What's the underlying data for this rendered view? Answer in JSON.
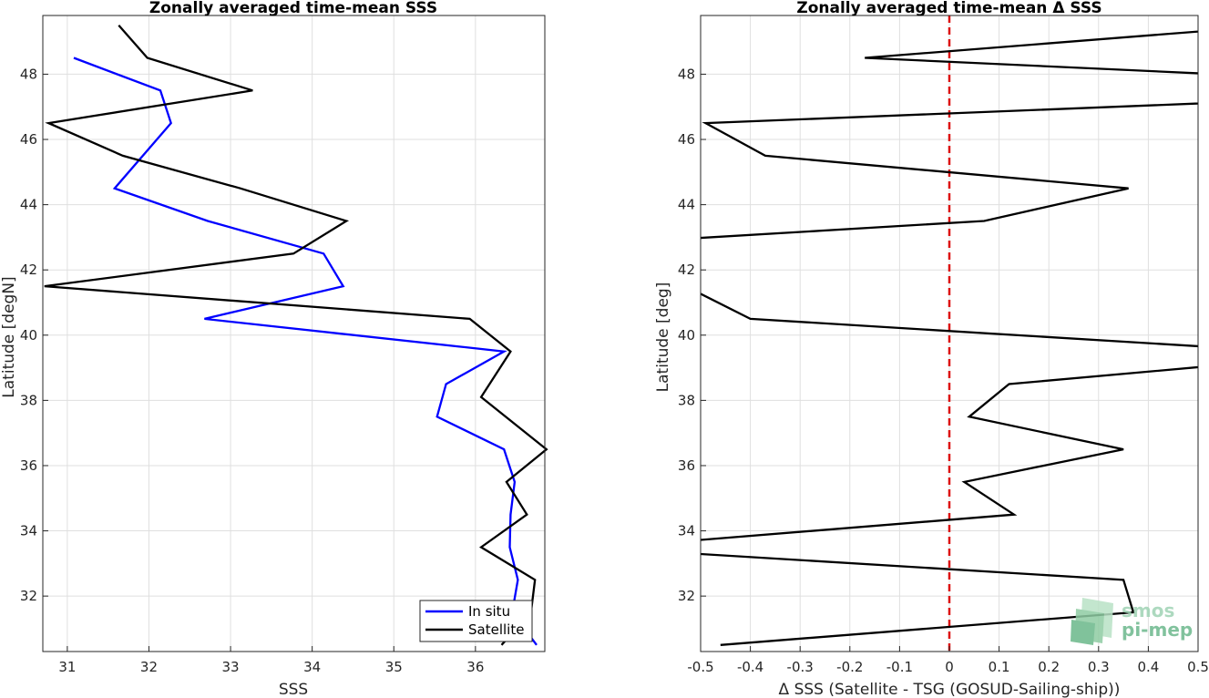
{
  "chart_data": [
    {
      "type": "line",
      "title": "Zonally averaged time-mean SSS",
      "xlabel": "SSS",
      "ylabel": "Latitude [degN]",
      "xlim": [
        30.7,
        36.85
      ],
      "ylim": [
        30.3,
        49.8
      ],
      "xticks": [
        31,
        32,
        33,
        34,
        35,
        36
      ],
      "yticks": [
        32,
        34,
        36,
        38,
        40,
        42,
        44,
        46,
        48
      ],
      "grid": true,
      "legend": "bottom-right",
      "series": [
        {
          "name": "In situ",
          "color": "#0000ff",
          "x": [
            36.75,
            36.45,
            36.52,
            36.42,
            36.43,
            36.48,
            36.35,
            35.53,
            35.64,
            36.35,
            32.68,
            34.38,
            34.14,
            32.72,
            31.58,
            32.27,
            32.14,
            31.08
          ],
          "y": [
            30.5,
            31.5,
            32.5,
            33.5,
            34.5,
            35.5,
            36.5,
            37.5,
            38.5,
            39.5,
            40.5,
            41.5,
            42.5,
            43.5,
            44.5,
            46.5,
            47.5,
            48.5
          ]
        },
        {
          "name": "Satellite",
          "color": "#000000",
          "x": [
            36.32,
            36.68,
            36.73,
            36.07,
            36.63,
            36.38,
            36.87,
            36.07,
            36.43,
            35.93,
            30.72,
            33.77,
            34.42,
            33.12,
            31.68,
            30.77,
            33.27,
            31.98,
            31.63
          ],
          "y": [
            30.5,
            31.5,
            32.5,
            33.5,
            34.5,
            35.5,
            36.5,
            38.1,
            39.5,
            40.5,
            41.5,
            42.5,
            43.5,
            44.5,
            45.5,
            46.5,
            47.5,
            48.5,
            49.5
          ]
        }
      ]
    },
    {
      "type": "line",
      "title": "Zonally averaged time-mean Δ SSS",
      "xlabel": "Δ SSS (Satellite - TSG (GOSUD-Sailing-ship))",
      "ylabel": "Latitude [deg]",
      "xlim": [
        -0.5,
        0.5
      ],
      "ylim": [
        30.3,
        49.8
      ],
      "xticks": [
        "-0.5",
        "-0.4",
        "-0.3",
        "-0.2",
        "-0.1",
        "0",
        "0.1",
        "0.2",
        "0.3",
        "0.4",
        "0.5"
      ],
      "yticks": [
        32,
        34,
        36,
        38,
        40,
        42,
        44,
        46,
        48
      ],
      "grid": true,
      "reference_line": {
        "x": 0,
        "color": "#dd1111",
        "style": "dashed"
      },
      "series": [
        {
          "color": "#000000",
          "x": [
            -0.46,
            0.37,
            0.35,
            -0.62,
            -0.6,
            0.13,
            0.03,
            0.35,
            0.04,
            0.12,
            0.78,
            -0.4,
            -0.7,
            0.07,
            0.36,
            -0.37,
            -0.49,
            0.66,
            0.68,
            -0.17,
            0.66
          ],
          "y": [
            30.5,
            31.5,
            32.5,
            33.4,
            33.6,
            34.5,
            35.5,
            36.5,
            37.5,
            38.5,
            39.4,
            40.5,
            42.8,
            43.5,
            44.5,
            45.5,
            46.5,
            47.2,
            47.9,
            48.5,
            49.5
          ]
        }
      ]
    }
  ],
  "logo": {
    "line1": "smos",
    "line2": "pi-mep"
  }
}
